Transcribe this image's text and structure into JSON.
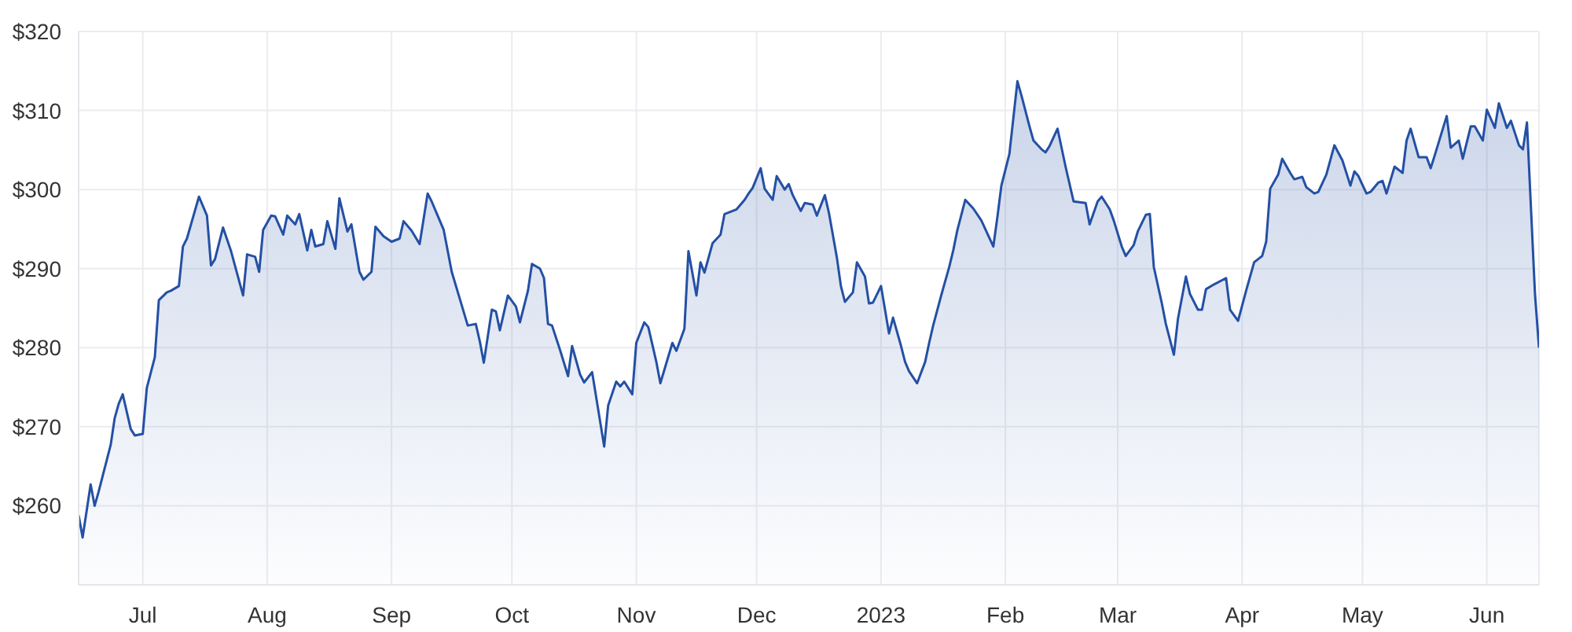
{
  "chart_data": {
    "type": "area",
    "x": [
      "2022-06-15",
      "2022-06-16",
      "2022-06-18",
      "2022-06-19",
      "2022-06-20",
      "2022-06-23",
      "2022-06-24",
      "2022-06-25",
      "2022-06-26",
      "2022-06-28",
      "2022-06-29",
      "2022-07-01",
      "2022-07-02",
      "2022-07-04",
      "2022-07-05",
      "2022-07-07",
      "2022-07-08",
      "2022-07-10",
      "2022-07-11",
      "2022-07-12",
      "2022-07-15",
      "2022-07-17",
      "2022-07-18",
      "2022-07-19",
      "2022-07-21",
      "2022-07-23",
      "2022-07-26",
      "2022-07-27",
      "2022-07-29",
      "2022-07-30",
      "2022-07-31",
      "2022-08-02",
      "2022-08-03",
      "2022-08-05",
      "2022-08-06",
      "2022-08-08",
      "2022-08-09",
      "2022-08-11",
      "2022-08-12",
      "2022-08-13",
      "2022-08-15",
      "2022-08-16",
      "2022-08-18",
      "2022-08-19",
      "2022-08-21",
      "2022-08-22",
      "2022-08-24",
      "2022-08-25",
      "2022-08-27",
      "2022-08-28",
      "2022-08-30",
      "2022-09-01",
      "2022-09-03",
      "2022-09-04",
      "2022-09-06",
      "2022-09-08",
      "2022-09-10",
      "2022-09-11",
      "2022-09-13",
      "2022-09-14",
      "2022-09-16",
      "2022-09-18",
      "2022-09-20",
      "2022-09-22",
      "2022-09-23",
      "2022-09-24",
      "2022-09-26",
      "2022-09-27",
      "2022-09-28",
      "2022-09-30",
      "2022-10-02",
      "2022-10-03",
      "2022-10-05",
      "2022-10-06",
      "2022-10-08",
      "2022-10-09",
      "2022-10-10",
      "2022-10-11",
      "2022-10-13",
      "2022-10-15",
      "2022-10-16",
      "2022-10-18",
      "2022-10-19",
      "2022-10-21",
      "2022-10-24",
      "2022-10-25",
      "2022-10-27",
      "2022-10-28",
      "2022-10-29",
      "2022-10-31",
      "2022-11-01",
      "2022-11-03",
      "2022-11-04",
      "2022-11-06",
      "2022-11-07",
      "2022-11-08",
      "2022-11-10",
      "2022-11-11",
      "2022-11-13",
      "2022-11-14",
      "2022-11-16",
      "2022-11-17",
      "2022-11-18",
      "2022-11-20",
      "2022-11-22",
      "2022-11-23",
      "2022-11-26",
      "2022-11-28",
      "2022-11-29",
      "2022-11-30",
      "2022-12-02",
      "2022-12-03",
      "2022-12-05",
      "2022-12-06",
      "2022-12-08",
      "2022-12-09",
      "2022-12-10",
      "2022-12-12",
      "2022-12-13",
      "2022-12-15",
      "2022-12-16",
      "2022-12-18",
      "2022-12-19",
      "2022-12-21",
      "2022-12-22",
      "2022-12-23",
      "2022-12-25",
      "2022-12-26",
      "2022-12-28",
      "2022-12-29",
      "2022-12-30",
      "2023-01-01",
      "2023-01-03",
      "2023-01-04",
      "2023-01-06",
      "2023-01-07",
      "2023-01-08",
      "2023-01-10",
      "2023-01-12",
      "2023-01-13",
      "2023-01-14",
      "2023-01-16",
      "2023-01-18",
      "2023-01-19",
      "2023-01-20",
      "2023-01-22",
      "2023-01-24",
      "2023-01-26",
      "2023-01-29",
      "2023-01-30",
      "2023-01-31",
      "2023-02-02",
      "2023-02-04",
      "2023-02-05",
      "2023-02-07",
      "2023-02-08",
      "2023-02-10",
      "2023-02-11",
      "2023-02-12",
      "2023-02-14",
      "2023-02-16",
      "2023-02-18",
      "2023-02-21",
      "2023-02-22",
      "2023-02-24",
      "2023-02-25",
      "2023-02-27",
      "2023-02-28",
      "2023-03-02",
      "2023-03-03",
      "2023-03-05",
      "2023-03-06",
      "2023-03-08",
      "2023-03-09",
      "2023-03-10",
      "2023-03-12",
      "2023-03-13",
      "2023-03-15",
      "2023-03-16",
      "2023-03-18",
      "2023-03-19",
      "2023-03-21",
      "2023-03-22",
      "2023-03-23",
      "2023-03-25",
      "2023-03-28",
      "2023-03-29",
      "2023-03-31",
      "2023-04-02",
      "2023-04-04",
      "2023-04-06",
      "2023-04-07",
      "2023-04-08",
      "2023-04-10",
      "2023-04-11",
      "2023-04-13",
      "2023-04-14",
      "2023-04-16",
      "2023-04-17",
      "2023-04-19",
      "2023-04-20",
      "2023-04-22",
      "2023-04-24",
      "2023-04-26",
      "2023-04-28",
      "2023-04-29",
      "2023-04-30",
      "2023-05-02",
      "2023-05-03",
      "2023-05-05",
      "2023-05-06",
      "2023-05-07",
      "2023-05-09",
      "2023-05-11",
      "2023-05-12",
      "2023-05-13",
      "2023-05-15",
      "2023-05-17",
      "2023-05-18",
      "2023-05-19",
      "2023-05-22",
      "2023-05-23",
      "2023-05-25",
      "2023-05-26",
      "2023-05-28",
      "2023-05-29",
      "2023-05-31",
      "2023-06-01",
      "2023-06-03",
      "2023-06-04",
      "2023-06-06",
      "2023-06-07",
      "2023-06-09",
      "2023-06-10",
      "2023-06-11",
      "2023-06-13",
      "2023-06-14"
    ],
    "series": [
      {
        "color": "#2450a4",
        "values": [
          258.8,
          256.0,
          262.7,
          260.0,
          261.8,
          267.7,
          271.1,
          272.9,
          274.1,
          269.7,
          268.9,
          269.1,
          274.9,
          278.8,
          286.0,
          287.0,
          287.2,
          287.8,
          292.8,
          293.8,
          299.1,
          296.7,
          290.4,
          291.2,
          295.2,
          292.2,
          286.6,
          291.8,
          291.5,
          289.6,
          294.9,
          296.7,
          296.6,
          294.3,
          296.7,
          295.6,
          296.9,
          292.3,
          294.9,
          292.8,
          293.1,
          296.0,
          292.5,
          298.9,
          294.7,
          295.6,
          289.6,
          288.6,
          289.6,
          295.3,
          294.1,
          293.4,
          293.8,
          296.0,
          294.8,
          293.1,
          299.5,
          298.5,
          296.1,
          294.9,
          289.6,
          286.2,
          282.8,
          283.0,
          280.8,
          278.1,
          284.8,
          284.6,
          282.2,
          286.6,
          285.2,
          283.2,
          287.2,
          290.6,
          290.0,
          288.8,
          283.0,
          282.8,
          279.7,
          276.4,
          280.2,
          276.6,
          275.6,
          276.9,
          267.5,
          272.7,
          275.7,
          275.1,
          275.7,
          274.1,
          280.6,
          283.2,
          282.6,
          278.2,
          275.5,
          277.2,
          280.6,
          279.6,
          282.4,
          292.2,
          286.6,
          290.8,
          289.5,
          293.2,
          294.3,
          296.9,
          297.5,
          298.7,
          299.5,
          300.2,
          302.7,
          300.1,
          298.7,
          301.7,
          300.0,
          300.7,
          299.3,
          297.3,
          298.3,
          298.1,
          296.7,
          299.3,
          297.1,
          291.4,
          287.8,
          285.8,
          287.0,
          290.8,
          289.0,
          285.6,
          285.7,
          287.8,
          281.8,
          283.8,
          280.2,
          278.2,
          277.0,
          275.5,
          278.2,
          280.6,
          282.8,
          286.6,
          290.2,
          292.3,
          294.8,
          298.7,
          297.6,
          296.1,
          292.8,
          296.5,
          300.5,
          304.5,
          313.7,
          311.9,
          308.0,
          306.2,
          305.1,
          304.7,
          305.5,
          307.7,
          302.9,
          298.5,
          298.3,
          295.6,
          298.5,
          299.1,
          297.5,
          296.1,
          292.8,
          291.6,
          293.0,
          294.7,
          296.8,
          296.9,
          290.2,
          285.6,
          283.0,
          279.1,
          283.6,
          289.0,
          286.8,
          284.8,
          284.8,
          287.4,
          288.0,
          288.8,
          284.8,
          283.4,
          287.2,
          290.8,
          291.6,
          293.4,
          300.1,
          301.9,
          303.9,
          302.1,
          301.3,
          301.6,
          300.3,
          299.5,
          299.7,
          301.9,
          305.6,
          303.7,
          300.5,
          302.3,
          301.7,
          299.5,
          299.7,
          300.9,
          301.1,
          299.5,
          302.9,
          302.1,
          306.2,
          307.7,
          304.1,
          304.1,
          302.7,
          304.3,
          309.3,
          305.3,
          306.2,
          303.9,
          308.0,
          308.0,
          306.2,
          310.1,
          307.8,
          310.9,
          307.8,
          308.7,
          305.6,
          305.1,
          308.5,
          286.8,
          280.0
        ]
      }
    ],
    "xlim": [
      "2022-06-15",
      "2023-06-14"
    ],
    "xticks": [
      {
        "value": "2022-07-01",
        "label": "Jul"
      },
      {
        "value": "2022-08-01",
        "label": "Aug"
      },
      {
        "value": "2022-09-01",
        "label": "Sep"
      },
      {
        "value": "2022-10-01",
        "label": "Oct"
      },
      {
        "value": "2022-11-01",
        "label": "Nov"
      },
      {
        "value": "2022-12-01",
        "label": "Dec"
      },
      {
        "value": "2023-01-01",
        "label": "2023"
      },
      {
        "value": "2023-02-01",
        "label": "Feb"
      },
      {
        "value": "2023-03-01",
        "label": "Mar"
      },
      {
        "value": "2023-04-01",
        "label": "Apr"
      },
      {
        "value": "2023-05-01",
        "label": "May"
      },
      {
        "value": "2023-06-01",
        "label": "Jun"
      }
    ],
    "ylim": [
      250,
      320
    ],
    "yticks": [
      {
        "value": 260,
        "label": "$260"
      },
      {
        "value": 270,
        "label": "$270"
      },
      {
        "value": 280,
        "label": "$280"
      },
      {
        "value": 290,
        "label": "$290"
      },
      {
        "value": 300,
        "label": "$300"
      },
      {
        "value": 310,
        "label": "$310"
      },
      {
        "value": 320,
        "label": "$320"
      }
    ],
    "grid": true
  }
}
